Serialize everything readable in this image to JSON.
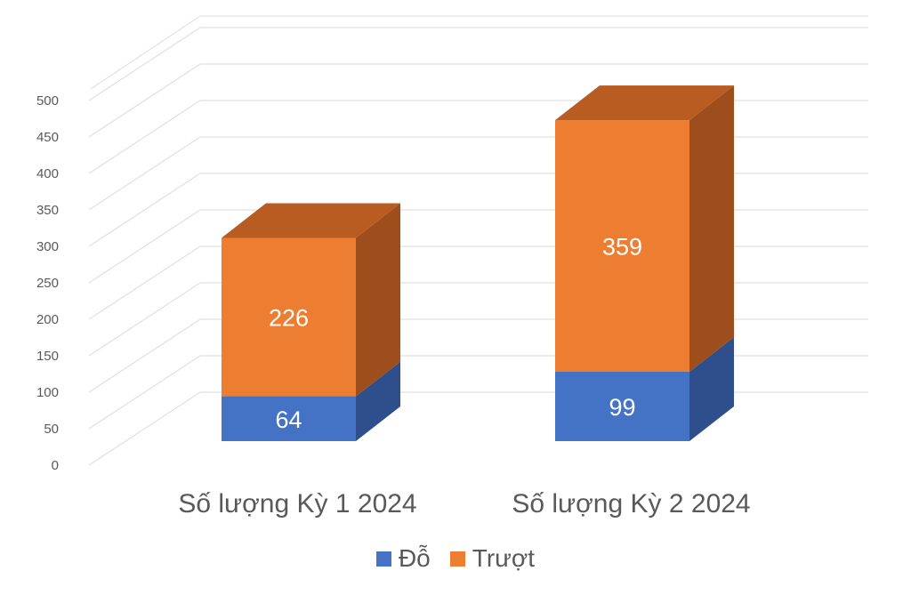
{
  "chart_data": {
    "type": "bar",
    "stacked": true,
    "three_d": true,
    "categories": [
      "Số lượng Kỳ 1 2024",
      "Số lượng Kỳ 2 2024"
    ],
    "series": [
      {
        "name": "Đỗ",
        "values": [
          64,
          99
        ],
        "color": "#4472C4",
        "top_color": "#3A61A8",
        "side_color": "#2F4F8C"
      },
      {
        "name": "Trượt",
        "values": [
          226,
          359
        ],
        "color": "#ED7D31",
        "top_color": "#B85C22",
        "side_color": "#9E4E1C"
      }
    ],
    "y_ticks": [
      "0",
      "50",
      "100",
      "150",
      "200",
      "250",
      "300",
      "350",
      "400",
      "450",
      "500"
    ],
    "ylim": [
      0,
      500
    ],
    "grid": true,
    "legend_position": "bottom"
  }
}
